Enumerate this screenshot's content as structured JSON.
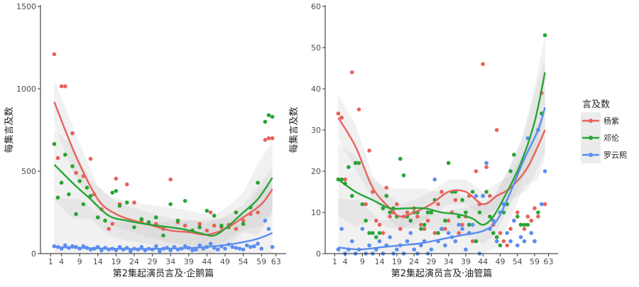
{
  "legend": {
    "title": "言及数",
    "entries": [
      {
        "name": "杨紫",
        "color": "#E8625B"
      },
      {
        "name": "邓伦",
        "color": "#27A535"
      },
      {
        "name": "罗云熙",
        "color": "#5A8DF0"
      }
    ]
  },
  "chart_data": [
    {
      "type": "scatter",
      "title": "",
      "xlabel": "第2集起演员言及·企鹅篇",
      "ylabel": "每集言及数",
      "xlim": [
        1,
        63
      ],
      "ylim": [
        0,
        1500
      ],
      "x_ticks": [
        1,
        4,
        9,
        14,
        19,
        24,
        29,
        34,
        39,
        44,
        49,
        54,
        59,
        63
      ],
      "y_ticks": [
        0,
        500,
        1000,
        1500
      ],
      "grid": false,
      "series": [
        {
          "name": "杨紫",
          "x": [
            2,
            3,
            4,
            5,
            7,
            8,
            10,
            12,
            13,
            15,
            17,
            18,
            19,
            20,
            22,
            24,
            26,
            28,
            30,
            32,
            34,
            36,
            38,
            40,
            42,
            44,
            45,
            46,
            48,
            50,
            52,
            54,
            56,
            58,
            60,
            61,
            62
          ],
          "y": [
            1210,
            580,
            1015,
            1015,
            730,
            490,
            470,
            575,
            360,
            270,
            150,
            180,
            455,
            300,
            420,
            310,
            200,
            190,
            180,
            150,
            450,
            190,
            170,
            140,
            180,
            140,
            250,
            170,
            160,
            175,
            150,
            200,
            240,
            250,
            690,
            700,
            700
          ],
          "smooth": [
            [
              2,
              920
            ],
            [
              8,
              590
            ],
            [
              14,
              330
            ],
            [
              19,
              240
            ],
            [
              24,
              200
            ],
            [
              29,
              170
            ],
            [
              34,
              140
            ],
            [
              39,
              130
            ],
            [
              44,
              115
            ],
            [
              49,
              150
            ],
            [
              54,
              220
            ],
            [
              59,
              300
            ],
            [
              62,
              390
            ]
          ]
        },
        {
          "name": "邓伦",
          "x": [
            2,
            3,
            4,
            5,
            6,
            7,
            8,
            9,
            10,
            11,
            12,
            14,
            16,
            18,
            19,
            20,
            22,
            24,
            26,
            28,
            30,
            32,
            34,
            36,
            38,
            40,
            42,
            44,
            46,
            48,
            50,
            52,
            54,
            56,
            58,
            60,
            61,
            62
          ],
          "y": [
            665,
            340,
            430,
            600,
            360,
            530,
            240,
            440,
            300,
            400,
            350,
            220,
            200,
            370,
            380,
            290,
            310,
            160,
            210,
            190,
            220,
            110,
            300,
            200,
            320,
            140,
            160,
            260,
            230,
            170,
            160,
            250,
            180,
            280,
            430,
            800,
            840,
            830
          ],
          "smooth": [
            [
              2,
              540
            ],
            [
              7,
              430
            ],
            [
              12,
              330
            ],
            [
              17,
              230
            ],
            [
              22,
              200
            ],
            [
              27,
              180
            ],
            [
              32,
              165
            ],
            [
              37,
              150
            ],
            [
              42,
              125
            ],
            [
              46,
              110
            ],
            [
              50,
              170
            ],
            [
              54,
              250
            ],
            [
              58,
              330
            ],
            [
              62,
              460
            ]
          ]
        },
        {
          "name": "罗云熙",
          "x": [
            2,
            3,
            4,
            5,
            6,
            7,
            8,
            9,
            10,
            11,
            12,
            13,
            14,
            15,
            16,
            17,
            18,
            19,
            20,
            21,
            22,
            23,
            24,
            25,
            26,
            27,
            28,
            29,
            30,
            31,
            32,
            33,
            34,
            35,
            36,
            37,
            38,
            39,
            40,
            41,
            42,
            43,
            44,
            45,
            46,
            47,
            48,
            49,
            50,
            51,
            52,
            53,
            54,
            55,
            56,
            57,
            58,
            59,
            60,
            61,
            62
          ],
          "y": [
            45,
            40,
            30,
            50,
            35,
            45,
            40,
            30,
            45,
            35,
            25,
            30,
            40,
            20,
            35,
            25,
            30,
            20,
            40,
            25,
            35,
            15,
            30,
            25,
            40,
            20,
            30,
            25,
            45,
            15,
            30,
            35,
            20,
            40,
            25,
            30,
            45,
            35,
            20,
            25,
            50,
            30,
            40,
            60,
            35,
            25,
            45,
            30,
            55,
            40,
            35,
            30,
            25,
            50,
            40,
            45,
            60,
            30,
            200,
            150,
            40
          ],
          "smooth": [
            [
              2,
              40
            ],
            [
              9,
              35
            ],
            [
              17,
              30
            ],
            [
              25,
              28
            ],
            [
              33,
              30
            ],
            [
              40,
              35
            ],
            [
              46,
              45
            ],
            [
              50,
              55
            ],
            [
              54,
              70
            ],
            [
              58,
              90
            ],
            [
              62,
              125
            ]
          ]
        }
      ]
    },
    {
      "type": "scatter",
      "title": "",
      "xlabel": "第2集起演员言及·油管篇",
      "ylabel": "每集言及数",
      "xlim": [
        1,
        63
      ],
      "ylim": [
        0,
        60
      ],
      "x_ticks": [
        1,
        4,
        9,
        14,
        19,
        24,
        29,
        34,
        39,
        44,
        49,
        54,
        59,
        63
      ],
      "y_ticks": [
        0,
        10,
        20,
        30,
        40,
        50,
        60
      ],
      "grid": false,
      "series": [
        {
          "name": "杨紫",
          "x": [
            2,
            3,
            4,
            6,
            7,
            8,
            10,
            11,
            12,
            13,
            14,
            15,
            16,
            17,
            18,
            19,
            20,
            21,
            22,
            23,
            24,
            25,
            26,
            27,
            28,
            29,
            30,
            31,
            32,
            33,
            34,
            35,
            36,
            37,
            38,
            39,
            40,
            41,
            42,
            43,
            44,
            45,
            46,
            47,
            48,
            49,
            50,
            51,
            52,
            53,
            54,
            55,
            56,
            57,
            58,
            59,
            60,
            61,
            62
          ],
          "y": [
            34,
            33,
            18,
            44,
            22,
            35,
            12,
            25,
            15,
            8,
            7,
            5,
            16,
            9,
            10,
            12,
            6,
            9,
            10,
            8,
            11,
            9,
            7,
            6,
            8,
            10,
            5,
            12,
            15,
            6,
            8,
            10,
            13,
            5,
            7,
            9,
            14,
            3,
            20,
            12,
            46,
            21,
            14,
            7,
            30,
            5,
            3,
            2,
            6,
            8,
            10,
            7,
            6,
            9,
            8,
            11,
            9,
            39,
            12
          ],
          "smooth": [
            [
              2,
              33
            ],
            [
              7,
              26
            ],
            [
              12,
              16
            ],
            [
              17,
              11
            ],
            [
              20,
              9
            ],
            [
              24,
              10
            ],
            [
              29,
              12
            ],
            [
              34,
              15
            ],
            [
              39,
              15
            ],
            [
              44,
              12
            ],
            [
              48,
              14
            ],
            [
              52,
              16
            ],
            [
              57,
              21
            ],
            [
              62,
              30
            ]
          ]
        },
        {
          "name": "邓伦",
          "x": [
            2,
            3,
            4,
            5,
            6,
            7,
            8,
            9,
            10,
            11,
            12,
            13,
            14,
            15,
            16,
            17,
            18,
            19,
            20,
            21,
            22,
            23,
            24,
            25,
            26,
            27,
            28,
            29,
            30,
            31,
            32,
            33,
            34,
            35,
            36,
            37,
            38,
            39,
            40,
            41,
            42,
            43,
            44,
            45,
            46,
            47,
            48,
            49,
            50,
            51,
            52,
            53,
            54,
            55,
            56,
            57,
            58,
            59,
            60,
            61,
            62
          ],
          "y": [
            18,
            18,
            17,
            21,
            14,
            22,
            22,
            12,
            8,
            5,
            5,
            4,
            5,
            11,
            14,
            10,
            11,
            9,
            23,
            19,
            9,
            8,
            10,
            10,
            6,
            7,
            10,
            10,
            13,
            5,
            6,
            8,
            22,
            15,
            15,
            9,
            13,
            10,
            7,
            15,
            3,
            10,
            14,
            15,
            9,
            5,
            4,
            2,
            10,
            12,
            20,
            24,
            9,
            7,
            7,
            7,
            5,
            3,
            10,
            34,
            53
          ],
          "smooth": [
            [
              2,
              18
            ],
            [
              7,
              15
            ],
            [
              12,
              13
            ],
            [
              17,
              11
            ],
            [
              22,
              11
            ],
            [
              27,
              11
            ],
            [
              32,
              10
            ],
            [
              37,
              9.5
            ],
            [
              41,
              8.5
            ],
            [
              44,
              7
            ],
            [
              47,
              9
            ],
            [
              51,
              15
            ],
            [
              55,
              22
            ],
            [
              59,
              32
            ],
            [
              62,
              44
            ]
          ]
        },
        {
          "name": "罗云熙",
          "x": [
            2,
            3,
            4,
            5,
            6,
            7,
            8,
            9,
            10,
            11,
            12,
            13,
            14,
            15,
            16,
            17,
            18,
            19,
            20,
            21,
            22,
            23,
            24,
            25,
            26,
            27,
            28,
            29,
            30,
            31,
            32,
            33,
            34,
            35,
            36,
            37,
            38,
            39,
            40,
            41,
            42,
            43,
            44,
            45,
            46,
            47,
            48,
            49,
            50,
            51,
            52,
            53,
            54,
            55,
            56,
            57,
            58,
            59,
            60,
            61,
            62
          ],
          "y": [
            1,
            6,
            0,
            1,
            3,
            0,
            1,
            6,
            0,
            2,
            0,
            1,
            3,
            0,
            2,
            4,
            0,
            1,
            2,
            0,
            3,
            5,
            1,
            0,
            2,
            3,
            0,
            1,
            18,
            3,
            6,
            2,
            5,
            4,
            3,
            7,
            6,
            1,
            5,
            7,
            14,
            0,
            14,
            22,
            6,
            8,
            3,
            10,
            12,
            5,
            3,
            8,
            2,
            4,
            3,
            28,
            5,
            3,
            30,
            12,
            20
          ],
          "smooth": [
            [
              2,
              1.5
            ],
            [
              8,
              1
            ],
            [
              14,
              1.5
            ],
            [
              20,
              2
            ],
            [
              26,
              2.5
            ],
            [
              32,
              3.5
            ],
            [
              38,
              4.5
            ],
            [
              44,
              5.5
            ],
            [
              48,
              8
            ],
            [
              52,
              15
            ],
            [
              56,
              23
            ],
            [
              60,
              30
            ],
            [
              62,
              35.5
            ]
          ]
        }
      ]
    }
  ]
}
